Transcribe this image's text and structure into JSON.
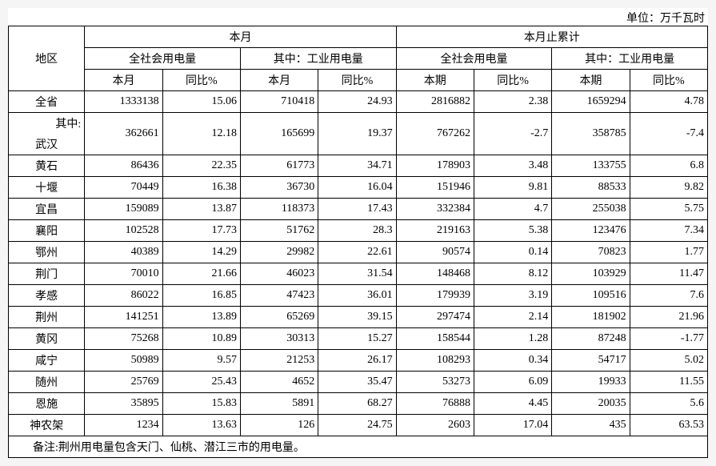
{
  "unit_label": "单位：万千瓦时",
  "headers": {
    "region": "地区",
    "this_month_group": "本月",
    "cumulative_group": "本月止累计",
    "total_consumption": "全社会用电量",
    "industrial_consumption": "其中：工业用电量",
    "month_col": "本月",
    "period_col": "本期",
    "yoy_col": "同比%"
  },
  "rows": [
    {
      "region": "全省",
      "v": [
        "1333138",
        "15.06",
        "710418",
        "24.93",
        "2816882",
        "2.38",
        "1659294",
        "4.78"
      ]
    },
    {
      "region": "其中:\n武汉",
      "v": [
        "362661",
        "12.18",
        "165699",
        "19.37",
        "767262",
        "-2.7",
        "358785",
        "-7.4"
      ]
    },
    {
      "region": "黄石",
      "v": [
        "86436",
        "22.35",
        "61773",
        "34.71",
        "178903",
        "3.48",
        "133755",
        "6.8"
      ]
    },
    {
      "region": "十堰",
      "v": [
        "70449",
        "16.38",
        "36730",
        "16.04",
        "151946",
        "9.81",
        "88533",
        "9.82"
      ]
    },
    {
      "region": "宜昌",
      "v": [
        "159089",
        "13.87",
        "118373",
        "17.43",
        "332384",
        "4.7",
        "255038",
        "5.75"
      ]
    },
    {
      "region": "襄阳",
      "v": [
        "102528",
        "17.73",
        "51762",
        "28.3",
        "219163",
        "5.38",
        "123476",
        "7.34"
      ]
    },
    {
      "region": "鄂州",
      "v": [
        "40389",
        "14.29",
        "29982",
        "22.61",
        "90574",
        "0.14",
        "70823",
        "1.77"
      ]
    },
    {
      "region": "荆门",
      "v": [
        "70010",
        "21.66",
        "46023",
        "31.54",
        "148468",
        "8.12",
        "103929",
        "11.47"
      ]
    },
    {
      "region": "孝感",
      "v": [
        "86022",
        "16.85",
        "47423",
        "36.01",
        "179939",
        "3.19",
        "109516",
        "7.6"
      ]
    },
    {
      "region": "荆州",
      "v": [
        "141251",
        "13.89",
        "65269",
        "39.15",
        "297474",
        "2.14",
        "181902",
        "21.96"
      ]
    },
    {
      "region": "黄冈",
      "v": [
        "75268",
        "10.89",
        "30313",
        "15.27",
        "158544",
        "1.28",
        "87248",
        "-1.77"
      ]
    },
    {
      "region": "咸宁",
      "v": [
        "50989",
        "9.57",
        "21253",
        "26.17",
        "108293",
        "0.34",
        "54717",
        "5.02"
      ]
    },
    {
      "region": "随州",
      "v": [
        "25769",
        "25.43",
        "4652",
        "35.47",
        "53273",
        "6.09",
        "19933",
        "11.55"
      ]
    },
    {
      "region": "恩施",
      "v": [
        "35895",
        "15.83",
        "5891",
        "68.27",
        "76888",
        "4.45",
        "20035",
        "5.6"
      ]
    },
    {
      "region": "神农架",
      "v": [
        "1234",
        "13.63",
        "126",
        "24.75",
        "2603",
        "17.04",
        "435",
        "63.53"
      ]
    }
  ],
  "footnote": "备注:荆州用电量包含天门、仙桃、潜江三市的用电量。"
}
